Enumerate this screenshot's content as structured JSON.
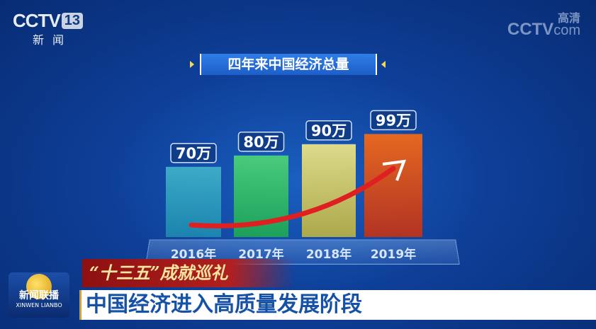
{
  "channel_logo": {
    "brand": "CCTV",
    "number": "13",
    "name": "新闻"
  },
  "watermark": {
    "brand": "CCTV",
    "suffix": "com",
    "tag": "高清"
  },
  "chart_data": {
    "type": "bar",
    "title": "四年来中国经济总量",
    "categories": [
      "2016年",
      "2017年",
      "2018年",
      "2019年"
    ],
    "values": [
      70,
      80,
      90,
      99
    ],
    "data_labels": [
      "70万",
      "80万",
      "90万",
      "99万"
    ],
    "unit": "万",
    "bar_colors": [
      [
        "#3fb0c8",
        "#1e8fb0"
      ],
      [
        "#4cd27a",
        "#1fae4c"
      ],
      [
        "#e8e28a",
        "#c8b83a"
      ],
      [
        "#f06a1a",
        "#d0300c"
      ]
    ],
    "trend_arrow": true,
    "grid": false
  },
  "program_logo": {
    "name": "新闻联播",
    "pinyin": "XINWEN LIANBO"
  },
  "banner": {
    "series": "“十三五”成就巡礼",
    "headline": "中国经济进入高质量发展阶段"
  }
}
